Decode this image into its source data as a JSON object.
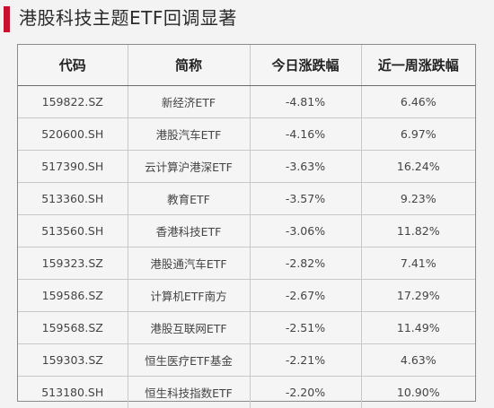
{
  "header": {
    "title": "港股科技主题ETF回调显著",
    "accent_color": "#c8102e"
  },
  "table": {
    "columns": [
      "代码",
      "简称",
      "今日涨跌幅",
      "近一周涨跌幅"
    ],
    "rows": [
      {
        "code": "159822.SZ",
        "name": "新经济ETF",
        "today": "-4.81%",
        "week": "6.46%"
      },
      {
        "code": "520600.SH",
        "name": "港股汽车ETF",
        "today": "-4.16%",
        "week": "6.97%"
      },
      {
        "code": "517390.SH",
        "name": "云计算沪港深ETF",
        "today": "-3.63%",
        "week": "16.24%"
      },
      {
        "code": "513360.SH",
        "name": "教育ETF",
        "today": "-3.57%",
        "week": "9.23%"
      },
      {
        "code": "513560.SH",
        "name": "香港科技ETF",
        "today": "-3.06%",
        "week": "11.82%"
      },
      {
        "code": "159323.SZ",
        "name": "港股通汽车ETF",
        "today": "-2.82%",
        "week": "7.41%"
      },
      {
        "code": "159586.SZ",
        "name": "计算机ETF南方",
        "today": "-2.67%",
        "week": "17.29%"
      },
      {
        "code": "159568.SZ",
        "name": "港股互联网ETF",
        "today": "-2.51%",
        "week": "11.49%"
      },
      {
        "code": "159303.SZ",
        "name": "恒生医疗ETF基金",
        "today": "-2.21%",
        "week": "4.63%"
      },
      {
        "code": "513180.SH",
        "name": "恒生科技指数ETF",
        "today": "-2.20%",
        "week": "10.90%"
      }
    ]
  }
}
